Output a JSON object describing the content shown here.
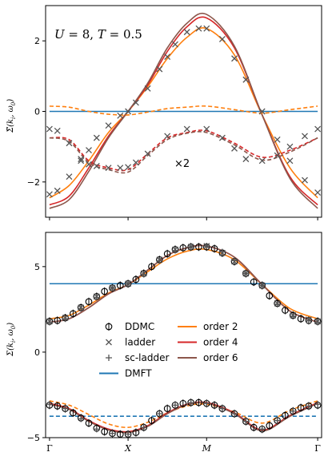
{
  "chart_data": [
    {
      "type": "line",
      "annotation": "U = 8, T = 0.5",
      "annotation_parts": [
        "U",
        " = 8, ",
        "T",
        " = 0.5"
      ],
      "ylabel_main": "Σ̃(k",
      "ylabel_sub1": "i",
      "ylabel_mid": ", ω",
      "ylabel_sub2": "0",
      "ylabel_end": ")",
      "ylim": [
        -3,
        3
      ],
      "yticks": [
        2,
        0,
        -2
      ],
      "note_text": "×2",
      "x_categories": [
        "Γ",
        "X",
        "M",
        "Γ"
      ],
      "x_positions": [
        0,
        1,
        2,
        3.414
      ],
      "grid": false,
      "series": [
        {
          "name": "DMFT",
          "color": "#1f77b4",
          "style": "solid",
          "x": [
            0,
            3.414
          ],
          "y": [
            0,
            0
          ]
        },
        {
          "name": "order 2",
          "color": "#ff7f0e",
          "style": "solid",
          "x": [
            0,
            0.25,
            0.5,
            0.75,
            1,
            1.25,
            1.5,
            1.75,
            2,
            2.354,
            2.707,
            3.061,
            3.414
          ],
          "y": [
            -2.45,
            -2.1,
            -1.4,
            -0.6,
            0.0,
            0.7,
            1.5,
            2.1,
            2.35,
            1.6,
            -0.1,
            -1.6,
            -2.45
          ]
        },
        {
          "name": "order 4",
          "color": "#d62728",
          "style": "solid",
          "x": [
            0,
            0.25,
            0.5,
            0.75,
            1,
            1.25,
            1.5,
            1.75,
            2,
            2.354,
            2.707,
            3.061,
            3.414
          ],
          "y": [
            -2.65,
            -2.4,
            -1.6,
            -0.7,
            0.0,
            0.75,
            1.7,
            2.4,
            2.65,
            1.8,
            -0.1,
            -1.85,
            -2.65
          ]
        },
        {
          "name": "order 6",
          "color": "#8c564b",
          "style": "solid",
          "x": [
            0,
            0.25,
            0.5,
            0.75,
            1,
            1.25,
            1.5,
            1.75,
            2,
            2.354,
            2.707,
            3.061,
            3.414
          ],
          "y": [
            -2.75,
            -2.5,
            -1.7,
            -0.75,
            0.0,
            0.8,
            1.8,
            2.5,
            2.75,
            1.85,
            -0.1,
            -1.9,
            -2.75
          ]
        },
        {
          "name": "order 2 (×2)",
          "color": "#ff7f0e",
          "style": "dashed",
          "x": [
            0,
            0.25,
            0.5,
            0.75,
            1,
            1.25,
            1.5,
            1.75,
            2,
            2.354,
            2.707,
            3.061,
            3.414
          ],
          "y": [
            0.15,
            0.12,
            0.0,
            -0.08,
            -0.1,
            -0.02,
            0.08,
            0.12,
            0.15,
            0.05,
            -0.05,
            0.05,
            0.15
          ]
        },
        {
          "name": "order 4 (×2)",
          "color": "#d62728",
          "style": "dashed",
          "x": [
            0,
            0.25,
            0.5,
            0.75,
            1,
            1.25,
            1.5,
            1.75,
            2,
            2.354,
            2.707,
            3.061,
            3.414
          ],
          "y": [
            -0.75,
            -0.8,
            -1.4,
            -1.6,
            -1.65,
            -1.2,
            -0.75,
            -0.6,
            -0.55,
            -0.9,
            -1.3,
            -1.1,
            -0.75
          ]
        },
        {
          "name": "order 6 (×2)",
          "color": "#8c564b",
          "style": "dashed",
          "x": [
            0,
            0.25,
            0.5,
            0.75,
            1,
            1.25,
            1.5,
            1.75,
            2,
            2.354,
            2.707,
            3.061,
            3.414
          ],
          "y": [
            -0.75,
            -0.85,
            -1.45,
            -1.65,
            -1.72,
            -1.25,
            -0.8,
            -0.62,
            -0.6,
            -0.95,
            -1.38,
            -1.15,
            -0.75
          ]
        },
        {
          "name": "ladder",
          "color": "#555555",
          "marker": "x",
          "x": [
            0,
            0.1,
            0.25,
            0.4,
            0.5,
            0.6,
            0.75,
            0.9,
            1,
            1.1,
            1.25,
            1.4,
            1.5,
            1.6,
            1.75,
            1.9,
            2,
            2.2,
            2.354,
            2.5,
            2.707,
            2.9,
            3.061,
            3.25,
            3.414
          ],
          "y": [
            -2.35,
            -2.25,
            -1.85,
            -1.4,
            -1.1,
            -0.75,
            -0.4,
            -0.12,
            0.0,
            0.25,
            0.65,
            1.2,
            1.55,
            1.9,
            2.25,
            2.35,
            2.35,
            2.05,
            1.5,
            0.9,
            0.0,
            -0.8,
            -1.4,
            -1.95,
            -2.3
          ]
        },
        {
          "name": "ladder (×2)",
          "color": "#555555",
          "marker": "x",
          "x": [
            0,
            0.1,
            0.25,
            0.4,
            0.5,
            0.6,
            0.75,
            0.9,
            1,
            1.1,
            1.25,
            1.5,
            1.75,
            2,
            2.2,
            2.354,
            2.5,
            2.707,
            2.9,
            3.061,
            3.25,
            3.414
          ],
          "y": [
            -0.5,
            -0.55,
            -0.9,
            -1.35,
            -1.5,
            -1.55,
            -1.6,
            -1.6,
            -1.58,
            -1.45,
            -1.2,
            -0.7,
            -0.5,
            -0.5,
            -0.75,
            -1.05,
            -1.35,
            -1.4,
            -1.25,
            -1.0,
            -0.7,
            -0.5
          ]
        }
      ]
    },
    {
      "type": "line",
      "ylabel_main": "Σ(k",
      "ylabel_sub1": "i",
      "ylabel_mid": ", ω",
      "ylabel_sub2": "0",
      "ylabel_end": ")",
      "ylim": [
        -5,
        7
      ],
      "yticks": [
        5,
        0,
        -5
      ],
      "x_categories": [
        "Γ",
        "X",
        "M",
        "Γ"
      ],
      "x_positions": [
        0,
        1,
        2,
        3.414
      ],
      "grid": false,
      "legend": {
        "placement": "center",
        "col1": [
          {
            "label": "DDMC",
            "marker": "circle-bar",
            "color": "#000000"
          },
          {
            "label": "ladder",
            "marker": "x",
            "color": "#555555"
          },
          {
            "label": "sc-ladder",
            "marker": "plus",
            "color": "#555555"
          },
          {
            "label": "DMFT",
            "marker": "line",
            "color": "#1f77b4"
          }
        ],
        "col2": [
          {
            "label": "order 2",
            "marker": "line",
            "color": "#ff7f0e"
          },
          {
            "label": "order 4",
            "marker": "line",
            "color": "#d62728"
          },
          {
            "label": "order 6",
            "marker": "line",
            "color": "#8c564b"
          }
        ]
      },
      "series": [
        {
          "name": "DMFT",
          "color": "#1f77b4",
          "style": "solid",
          "x": [
            0,
            3.414
          ],
          "y": [
            4.0,
            4.0
          ]
        },
        {
          "name": "DMFT (lower)",
          "color": "#1f77b4",
          "style": "dashed",
          "x": [
            0,
            3.414
          ],
          "y": [
            -3.75,
            -3.75
          ]
        },
        {
          "name": "order 2",
          "color": "#ff7f0e",
          "style": "solid",
          "x": [
            0,
            0.25,
            0.5,
            0.75,
            1,
            1.25,
            1.5,
            1.75,
            2,
            2.354,
            2.707,
            3.061,
            3.414
          ],
          "y": [
            1.95,
            2.15,
            2.75,
            3.45,
            3.95,
            4.7,
            5.45,
            5.9,
            6.0,
            5.4,
            3.95,
            2.55,
            1.95
          ]
        },
        {
          "name": "order 4",
          "color": "#d62728",
          "style": "solid",
          "x": [
            0,
            0.25,
            0.5,
            0.75,
            1,
            1.25,
            1.5,
            1.75,
            2,
            2.354,
            2.707,
            3.061,
            3.414
          ],
          "y": [
            1.75,
            1.95,
            2.6,
            3.4,
            3.95,
            4.8,
            5.65,
            6.1,
            6.2,
            5.55,
            3.95,
            2.4,
            1.75
          ]
        },
        {
          "name": "order 6",
          "color": "#8c564b",
          "style": "solid",
          "x": [
            0,
            0.25,
            0.5,
            0.75,
            1,
            1.25,
            1.5,
            1.75,
            2,
            2.354,
            2.707,
            3.061,
            3.414
          ],
          "y": [
            1.75,
            1.95,
            2.6,
            3.4,
            3.95,
            4.8,
            5.65,
            6.1,
            6.2,
            5.55,
            3.95,
            2.4,
            1.75
          ]
        },
        {
          "name": "order 2 (lower)",
          "color": "#ff7f0e",
          "style": "dashed",
          "x": [
            0,
            0.25,
            0.5,
            0.75,
            1,
            1.25,
            1.5,
            1.75,
            2,
            2.354,
            2.707,
            3.061,
            3.414
          ],
          "y": [
            -2.85,
            -3.1,
            -3.65,
            -4.2,
            -4.4,
            -4.1,
            -3.55,
            -3.15,
            -3.05,
            -3.5,
            -4.15,
            -3.4,
            -2.85
          ]
        },
        {
          "name": "order 4 (lower)",
          "color": "#d62728",
          "style": "solid",
          "x": [
            0,
            0.25,
            0.5,
            0.75,
            1,
            1.25,
            1.5,
            1.75,
            2,
            2.354,
            2.707,
            3.061,
            3.414
          ],
          "y": [
            -3.0,
            -3.3,
            -4.0,
            -4.5,
            -4.65,
            -4.3,
            -3.55,
            -3.05,
            -2.95,
            -3.55,
            -4.55,
            -3.7,
            -2.95
          ]
        },
        {
          "name": "order 6 (lower)",
          "color": "#8c564b",
          "style": "solid",
          "x": [
            0,
            0.25,
            0.5,
            0.75,
            1,
            1.25,
            1.5,
            1.75,
            2,
            2.354,
            2.707,
            3.061,
            3.414
          ],
          "y": [
            -3.05,
            -3.35,
            -4.05,
            -4.55,
            -4.7,
            -4.35,
            -3.6,
            -3.08,
            -2.98,
            -3.6,
            -4.6,
            -3.75,
            -3.0
          ]
        },
        {
          "name": "DDMC",
          "color": "#000000",
          "marker": "circle-bar",
          "x": [
            0,
            0.1,
            0.2,
            0.3,
            0.4,
            0.5,
            0.6,
            0.7,
            0.8,
            0.9,
            1,
            1.1,
            1.2,
            1.3,
            1.4,
            1.5,
            1.6,
            1.7,
            1.8,
            1.9,
            2,
            2.1,
            2.2,
            2.354,
            2.5,
            2.6,
            2.707,
            2.8,
            2.9,
            3.0,
            3.1,
            3.2,
            3.3,
            3.414
          ],
          "y": [
            1.8,
            1.85,
            2.0,
            2.25,
            2.6,
            2.95,
            3.25,
            3.55,
            3.75,
            3.9,
            4.0,
            4.25,
            4.6,
            5.0,
            5.4,
            5.75,
            6.0,
            6.1,
            6.15,
            6.15,
            6.15,
            6.05,
            5.8,
            5.3,
            4.6,
            4.1,
            3.9,
            3.3,
            2.85,
            2.45,
            2.15,
            1.95,
            1.85,
            1.8
          ]
        },
        {
          "name": "DDMC (lower)",
          "color": "#000000",
          "marker": "circle-bar",
          "x": [
            0,
            0.1,
            0.2,
            0.3,
            0.4,
            0.5,
            0.6,
            0.7,
            0.8,
            0.9,
            1,
            1.1,
            1.2,
            1.3,
            1.4,
            1.5,
            1.6,
            1.7,
            1.8,
            1.9,
            2,
            2.1,
            2.2,
            2.354,
            2.5,
            2.6,
            2.707,
            2.8,
            2.9,
            3.0,
            3.1,
            3.2,
            3.3,
            3.414
          ],
          "y": [
            -3.1,
            -3.15,
            -3.3,
            -3.55,
            -3.85,
            -4.15,
            -4.45,
            -4.65,
            -4.75,
            -4.8,
            -4.8,
            -4.7,
            -4.4,
            -4.0,
            -3.6,
            -3.3,
            -3.1,
            -3.0,
            -2.95,
            -2.95,
            -3.0,
            -3.1,
            -3.3,
            -3.6,
            -4.05,
            -4.4,
            -4.5,
            -4.3,
            -4.0,
            -3.7,
            -3.45,
            -3.25,
            -3.15,
            -3.1
          ]
        },
        {
          "name": "sc-ladder",
          "color": "#555555",
          "marker": "plus",
          "x": [
            0,
            0.2,
            0.4,
            0.6,
            0.8,
            1,
            1.2,
            1.4,
            1.6,
            1.8,
            2,
            2.2,
            2.354,
            2.5,
            2.707,
            2.9,
            3.1,
            3.3,
            3.414
          ],
          "y": [
            1.75,
            1.95,
            2.55,
            3.2,
            3.75,
            4.0,
            4.55,
            5.35,
            5.95,
            6.15,
            6.2,
            5.85,
            5.35,
            4.6,
            3.9,
            2.8,
            2.1,
            1.85,
            1.75
          ]
        },
        {
          "name": "ladder",
          "color": "#555555",
          "marker": "x",
          "x": [
            0,
            0.2,
            0.4,
            0.6,
            0.8,
            1,
            1.2,
            1.4,
            1.6,
            1.8,
            2,
            2.2,
            2.354,
            2.5,
            2.707,
            2.9,
            3.1,
            3.3,
            3.414
          ],
          "y": [
            1.8,
            2.0,
            2.6,
            3.25,
            3.75,
            4.0,
            4.6,
            5.4,
            6.0,
            6.15,
            6.2,
            5.8,
            5.3,
            4.6,
            3.9,
            2.85,
            2.15,
            1.9,
            1.8
          ]
        },
        {
          "name": "sc-ladder (lower)",
          "color": "#555555",
          "marker": "plus",
          "x": [
            0,
            0.2,
            0.4,
            0.6,
            0.8,
            1,
            1.2,
            1.4,
            1.6,
            1.8,
            2,
            2.2,
            2.354,
            2.5,
            2.707,
            2.9,
            3.1,
            3.3,
            3.414
          ],
          "y": [
            -3.05,
            -3.3,
            -3.9,
            -4.5,
            -4.75,
            -4.8,
            -4.4,
            -3.6,
            -3.1,
            -2.95,
            -3.0,
            -3.3,
            -3.6,
            -4.05,
            -4.5,
            -4.0,
            -3.45,
            -3.15,
            -3.05
          ]
        }
      ]
    }
  ]
}
